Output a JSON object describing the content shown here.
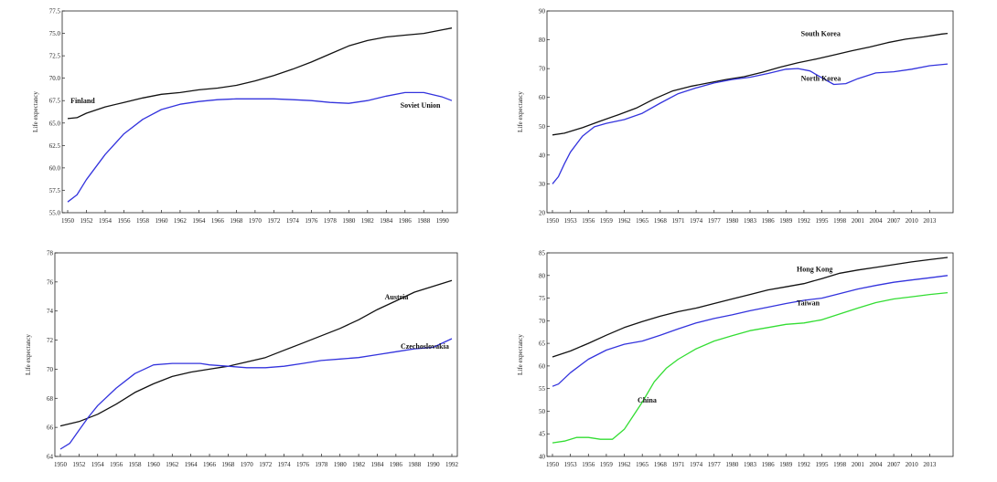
{
  "chart_data": [
    {
      "type": "line",
      "ylabel": "Life expectancy",
      "ylim": [
        55.0,
        77.5
      ],
      "yticks": [
        "55.0",
        "57.5",
        "60.0",
        "62.5",
        "65.0",
        "67.5",
        "70.0",
        "72.5",
        "75.0",
        "77.5"
      ],
      "xlim": [
        1950,
        1991
      ],
      "xticks": [
        "1950",
        "1952",
        "1954",
        "1956",
        "1958",
        "1960",
        "1962",
        "1964",
        "1966",
        "1968",
        "1970",
        "1972",
        "1974",
        "1976",
        "1978",
        "1980",
        "1982",
        "1984",
        "1986",
        "1988",
        "1990"
      ],
      "grid": false,
      "series": [
        {
          "name": "Finland",
          "color": "#111111",
          "x": [
            1950,
            1951,
            1952,
            1954,
            1956,
            1958,
            1960,
            1962,
            1964,
            1966,
            1968,
            1970,
            1972,
            1974,
            1976,
            1978,
            1980,
            1982,
            1984,
            1986,
            1988,
            1990,
            1991
          ],
          "y": [
            65.5,
            65.6,
            66.1,
            66.8,
            67.3,
            67.8,
            68.2,
            68.4,
            68.7,
            68.9,
            69.2,
            69.7,
            70.3,
            71.0,
            71.8,
            72.7,
            73.6,
            74.2,
            74.6,
            74.8,
            75.0,
            75.4,
            75.6
          ]
        },
        {
          "name": "Soviet Union",
          "color": "#3333dd",
          "x": [
            1950,
            1951,
            1952,
            1954,
            1956,
            1958,
            1960,
            1962,
            1964,
            1966,
            1968,
            1970,
            1972,
            1974,
            1976,
            1978,
            1980,
            1982,
            1984,
            1986,
            1988,
            1990,
            1991
          ],
          "y": [
            56.2,
            57.0,
            58.7,
            61.5,
            63.8,
            65.4,
            66.5,
            67.1,
            67.4,
            67.6,
            67.7,
            67.7,
            67.7,
            67.6,
            67.5,
            67.3,
            67.2,
            67.5,
            68.0,
            68.4,
            68.4,
            67.9,
            67.5
          ]
        }
      ],
      "annotations": [
        {
          "text": "Finland",
          "x": 1950.3,
          "y": 67.2
        },
        {
          "text": "Soviet Union",
          "x": 1985.5,
          "y": 66.7
        }
      ]
    },
    {
      "type": "line",
      "ylabel": "Life expectancy",
      "ylim": [
        20,
        90
      ],
      "yticks": [
        "20",
        "30",
        "40",
        "50",
        "60",
        "70",
        "80",
        "90"
      ],
      "xlim": [
        1950,
        2016
      ],
      "xticks": [
        "1950",
        "1953",
        "1956",
        "1959",
        "1962",
        "1965",
        "1968",
        "1971",
        "1974",
        "1977",
        "1980",
        "1983",
        "1986",
        "1989",
        "1992",
        "1995",
        "1998",
        "2001",
        "2004",
        "2007",
        "2010",
        "2013"
      ],
      "grid": false,
      "series": [
        {
          "name": "South Korea",
          "color": "#111111",
          "x": [
            1950,
            1952,
            1955,
            1958,
            1961,
            1964,
            1967,
            1970,
            1973,
            1976,
            1979,
            1982,
            1985,
            1988,
            1991,
            1994,
            1997,
            2000,
            2003,
            2006,
            2009,
            2012,
            2015,
            2016
          ],
          "y": [
            47,
            47.6,
            49.5,
            51.8,
            54,
            56.3,
            59.5,
            62.2,
            63.8,
            65,
            66.2,
            67.2,
            68.7,
            70.5,
            72,
            73.3,
            74.7,
            76.2,
            77.5,
            79,
            80.2,
            81,
            82,
            82.2
          ]
        },
        {
          "name": "North Korea",
          "color": "#3333dd",
          "x": [
            1950,
            1951,
            1952,
            1953,
            1955,
            1957,
            1959,
            1962,
            1965,
            1968,
            1971,
            1974,
            1977,
            1980,
            1983,
            1986,
            1989,
            1991,
            1993,
            1995,
            1997,
            1999,
            2001,
            2004,
            2007,
            2010,
            2013,
            2016
          ],
          "y": [
            30,
            32.5,
            37,
            41,
            46.5,
            49.8,
            51,
            52.3,
            54.5,
            58,
            61.3,
            63.3,
            65,
            66.2,
            67,
            68.3,
            69.8,
            70,
            69.2,
            66.8,
            64.5,
            64.8,
            66.5,
            68.5,
            68.9,
            69.8,
            71,
            71.6
          ]
        }
      ],
      "annotations": [
        {
          "text": "South Korea",
          "x": 1991.5,
          "y": 81.3
        },
        {
          "text": "North Korea",
          "x": 1991.5,
          "y": 65.8
        }
      ]
    },
    {
      "type": "line",
      "ylabel": "Life expectancy",
      "ylim": [
        64,
        78
      ],
      "yticks": [
        "64",
        "66",
        "68",
        "70",
        "72",
        "74",
        "76",
        "78"
      ],
      "xlim": [
        1950,
        1992
      ],
      "xticks": [
        "1950",
        "1952",
        "1954",
        "1956",
        "1958",
        "1960",
        "1962",
        "1964",
        "1966",
        "1968",
        "1970",
        "1972",
        "1974",
        "1976",
        "1978",
        "1980",
        "1982",
        "1984",
        "1986",
        "1988",
        "1990",
        "1992"
      ],
      "grid": false,
      "series": [
        {
          "name": "Austria",
          "color": "#111111",
          "x": [
            1950,
            1952,
            1954,
            1956,
            1958,
            1960,
            1962,
            1964,
            1966,
            1968,
            1970,
            1972,
            1974,
            1976,
            1978,
            1980,
            1982,
            1984,
            1986,
            1988,
            1990,
            1992
          ],
          "y": [
            66.1,
            66.4,
            66.9,
            67.6,
            68.4,
            69.0,
            69.5,
            69.8,
            70.0,
            70.2,
            70.5,
            70.8,
            71.3,
            71.8,
            72.3,
            72.8,
            73.4,
            74.1,
            74.7,
            75.3,
            75.7,
            76.1
          ]
        },
        {
          "name": "Czechoslovakia",
          "color": "#3333dd",
          "x": [
            1950,
            1951,
            1952,
            1953,
            1954,
            1956,
            1958,
            1960,
            1962,
            1963,
            1965,
            1966,
            1968,
            1970,
            1972,
            1974,
            1976,
            1978,
            1980,
            1982,
            1984,
            1986,
            1988,
            1990,
            1992
          ],
          "y": [
            64.5,
            64.9,
            65.8,
            66.7,
            67.5,
            68.7,
            69.7,
            70.3,
            70.4,
            70.4,
            70.4,
            70.3,
            70.2,
            70.1,
            70.1,
            70.2,
            70.4,
            70.6,
            70.7,
            70.8,
            71.0,
            71.2,
            71.4,
            71.5,
            72.1
          ]
        }
      ],
      "annotations": [
        {
          "text": "Austria",
          "x": 1984.8,
          "y": 74.8
        },
        {
          "text": "Czechoslovakia",
          "x": 1986.5,
          "y": 71.4
        }
      ]
    },
    {
      "type": "line",
      "ylabel": "Life expectancy",
      "ylim": [
        40,
        85
      ],
      "yticks": [
        "40",
        "45",
        "50",
        "55",
        "60",
        "65",
        "70",
        "75",
        "80",
        "85"
      ],
      "xlim": [
        1950,
        2016
      ],
      "xticks": [
        "1950",
        "1953",
        "1956",
        "1959",
        "1962",
        "1965",
        "1968",
        "1971",
        "1974",
        "1977",
        "1980",
        "1983",
        "1986",
        "1989",
        "1992",
        "1995",
        "1998",
        "2001",
        "2004",
        "2007",
        "2010",
        "2013"
      ],
      "grid": false,
      "series": [
        {
          "name": "Hong Kong",
          "color": "#111111",
          "x": [
            1950,
            1953,
            1956,
            1959,
            1962,
            1965,
            1968,
            1971,
            1974,
            1977,
            1980,
            1983,
            1986,
            1989,
            1992,
            1995,
            1998,
            2001,
            2004,
            2007,
            2010,
            2013,
            2016
          ],
          "y": [
            62,
            63.3,
            65,
            66.8,
            68.5,
            69.8,
            71,
            72,
            72.8,
            73.8,
            74.8,
            75.8,
            76.8,
            77.5,
            78.2,
            79.3,
            80.5,
            81.2,
            81.8,
            82.4,
            83,
            83.5,
            84
          ]
        },
        {
          "name": "Taiwan",
          "color": "#3333dd",
          "x": [
            1950,
            1951,
            1953,
            1956,
            1959,
            1962,
            1965,
            1968,
            1971,
            1974,
            1977,
            1980,
            1983,
            1986,
            1989,
            1992,
            1995,
            1998,
            2001,
            2004,
            2007,
            2010,
            2013,
            2016
          ],
          "y": [
            55.5,
            56,
            58.5,
            61.5,
            63.5,
            64.8,
            65.5,
            66.8,
            68.2,
            69.5,
            70.5,
            71.3,
            72.2,
            73,
            73.8,
            74.5,
            75,
            76,
            77,
            77.8,
            78.5,
            79,
            79.5,
            80
          ]
        },
        {
          "name": "China",
          "color": "#33dd33",
          "x": [
            1950,
            1952,
            1954,
            1956,
            1958,
            1960,
            1962,
            1963,
            1965,
            1967,
            1969,
            1971,
            1974,
            1977,
            1980,
            1983,
            1986,
            1989,
            1992,
            1995,
            1998,
            2001,
            2004,
            2007,
            2010,
            2013,
            2016
          ],
          "y": [
            43,
            43.4,
            44.2,
            44.2,
            43.8,
            43.8,
            46,
            48,
            52,
            56.5,
            59.5,
            61.5,
            63.8,
            65.5,
            66.7,
            67.8,
            68.5,
            69.2,
            69.5,
            70.2,
            71.5,
            72.8,
            74,
            74.8,
            75.3,
            75.8,
            76.2
          ]
        }
      ],
      "annotations": [
        {
          "text": "Hong Kong",
          "x": 1990.8,
          "y": 80.9
        },
        {
          "text": "Taiwan",
          "x": 1990.8,
          "y": 73.4
        },
        {
          "text": "China",
          "x": 1964.2,
          "y": 51.9
        }
      ]
    }
  ]
}
